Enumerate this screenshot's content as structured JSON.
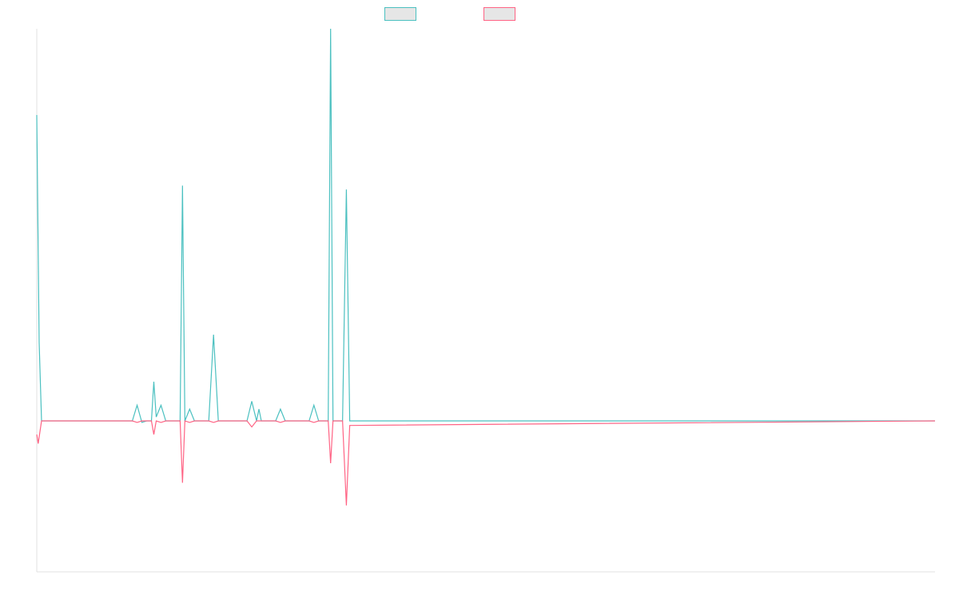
{
  "chart_data": {
    "type": "line",
    "title": "",
    "xlabel": "",
    "ylabel": "",
    "ylim": [
      -100,
      100
    ],
    "grid": false,
    "legend": "top-center",
    "x_count": 189,
    "series": [
      {
        "color": "#4bc0c0",
        "fill": "#e6e6e6",
        "points": [
          [
            0,
            78
          ],
          [
            0.5,
            20
          ],
          [
            1,
            0
          ],
          [
            20,
            0
          ],
          [
            21,
            4
          ],
          [
            22,
            -1
          ],
          [
            23,
            0
          ],
          [
            24,
            0
          ],
          [
            24.5,
            10
          ],
          [
            25,
            1
          ],
          [
            26,
            4
          ],
          [
            27,
            0
          ],
          [
            28,
            0
          ],
          [
            29,
            0
          ],
          [
            30,
            0
          ],
          [
            30.5,
            60
          ],
          [
            31,
            0
          ],
          [
            32,
            3
          ],
          [
            33,
            0
          ],
          [
            36,
            0
          ],
          [
            37,
            22
          ],
          [
            38,
            0
          ],
          [
            44,
            0
          ],
          [
            45,
            5
          ],
          [
            46,
            0
          ],
          [
            46.5,
            3
          ],
          [
            47,
            0
          ],
          [
            50,
            0
          ],
          [
            51,
            3
          ],
          [
            52,
            0
          ],
          [
            57,
            0
          ],
          [
            58,
            4
          ],
          [
            59,
            0
          ],
          [
            61,
            0
          ],
          [
            61.5,
            100
          ],
          [
            62,
            0
          ],
          [
            64,
            0
          ],
          [
            64.8,
            59
          ],
          [
            65.5,
            0
          ],
          [
            188,
            0
          ]
        ]
      },
      {
        "color": "#ff6384",
        "fill": "#e6e6e6",
        "points": [
          [
            0,
            -9
          ],
          [
            0.3,
            -15
          ],
          [
            1,
            0
          ],
          [
            20,
            0
          ],
          [
            21,
            -1
          ],
          [
            22,
            0
          ],
          [
            24,
            0
          ],
          [
            24.5,
            -9
          ],
          [
            25,
            0
          ],
          [
            26,
            -1
          ],
          [
            27,
            0
          ],
          [
            30,
            0
          ],
          [
            30.5,
            -41
          ],
          [
            31,
            0
          ],
          [
            32,
            -1
          ],
          [
            33,
            0
          ],
          [
            36,
            0
          ],
          [
            37,
            -1
          ],
          [
            38,
            0
          ],
          [
            44,
            0
          ],
          [
            45,
            -4
          ],
          [
            46,
            0
          ],
          [
            50,
            0
          ],
          [
            51,
            -1
          ],
          [
            52,
            0
          ],
          [
            57,
            0
          ],
          [
            58,
            -1
          ],
          [
            59,
            0
          ],
          [
            61,
            0
          ],
          [
            61.5,
            -28
          ],
          [
            62,
            0
          ],
          [
            64,
            0
          ],
          [
            64.8,
            -56
          ],
          [
            65.5,
            -3
          ],
          [
            188,
            0
          ]
        ]
      }
    ]
  }
}
